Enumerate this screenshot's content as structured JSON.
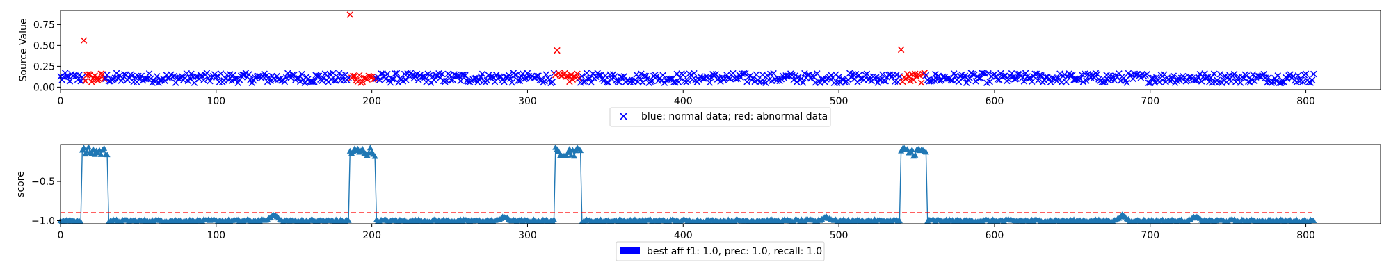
{
  "chart_data": [
    {
      "type": "scatter",
      "ylabel": "Source Value",
      "xlabel": "",
      "xlim": [
        0,
        848
      ],
      "ylim": [
        -0.03,
        0.92
      ],
      "xticks": [
        0,
        100,
        200,
        300,
        400,
        500,
        600,
        700,
        800
      ],
      "xtick_labels": [
        "0",
        "100",
        "200",
        "300",
        "400",
        "500",
        "600",
        "700",
        "800"
      ],
      "yticks": [
        0.0,
        0.25,
        0.5,
        0.75
      ],
      "ytick_labels": [
        "0.00",
        "0.25",
        "0.50",
        "0.75"
      ],
      "n_points": 806,
      "baseline_mean": 0.11,
      "baseline_spread": 0.06,
      "marker": "x",
      "normal_color": "#0000ff",
      "abnormal_color": "#ff0000",
      "abnormal_ranges": [
        [
          15,
          28
        ],
        [
          186,
          202
        ],
        [
          318,
          333
        ],
        [
          540,
          555
        ]
      ],
      "abnormal_spikes": [
        {
          "x": 15,
          "y": 0.56
        },
        {
          "x": 186,
          "y": 0.87
        },
        {
          "x": 319,
          "y": 0.44
        },
        {
          "x": 540,
          "y": 0.45
        }
      ],
      "legend": {
        "label": "blue: normal data; red: abnormal data",
        "placement": "below-center"
      }
    },
    {
      "type": "line",
      "ylabel": "score",
      "xlabel": "",
      "xlim": [
        0,
        848
      ],
      "ylim": [
        -1.04,
        -0.03
      ],
      "xticks": [
        0,
        100,
        200,
        300,
        400,
        500,
        600,
        700,
        800
      ],
      "xtick_labels": [
        "0",
        "100",
        "200",
        "300",
        "400",
        "500",
        "600",
        "700",
        "800"
      ],
      "yticks": [
        -1.0,
        -0.5
      ],
      "ytick_labels": [
        "−1.0",
        "−0.5"
      ],
      "n_points": 806,
      "marker": "triangle-up",
      "line_color": "#1f77b4",
      "high_level": -0.12,
      "low_level": -1.0,
      "high_ranges": [
        [
          14,
          30
        ],
        [
          186,
          202
        ],
        [
          318,
          334
        ],
        [
          540,
          556
        ]
      ],
      "small_bumps": [
        {
          "x": 137,
          "y": -0.92
        },
        {
          "x": 285,
          "y": -0.95
        },
        {
          "x": 492,
          "y": -0.95
        },
        {
          "x": 682,
          "y": -0.93
        },
        {
          "x": 729,
          "y": -0.95
        }
      ],
      "threshold": -0.9,
      "threshold_color": "#ff0000",
      "legend": {
        "label": "best aff f1: 1.0, prec: 1.0, recall: 1.0",
        "placement": "below-center",
        "swatch_color": "#0000ff"
      }
    }
  ]
}
